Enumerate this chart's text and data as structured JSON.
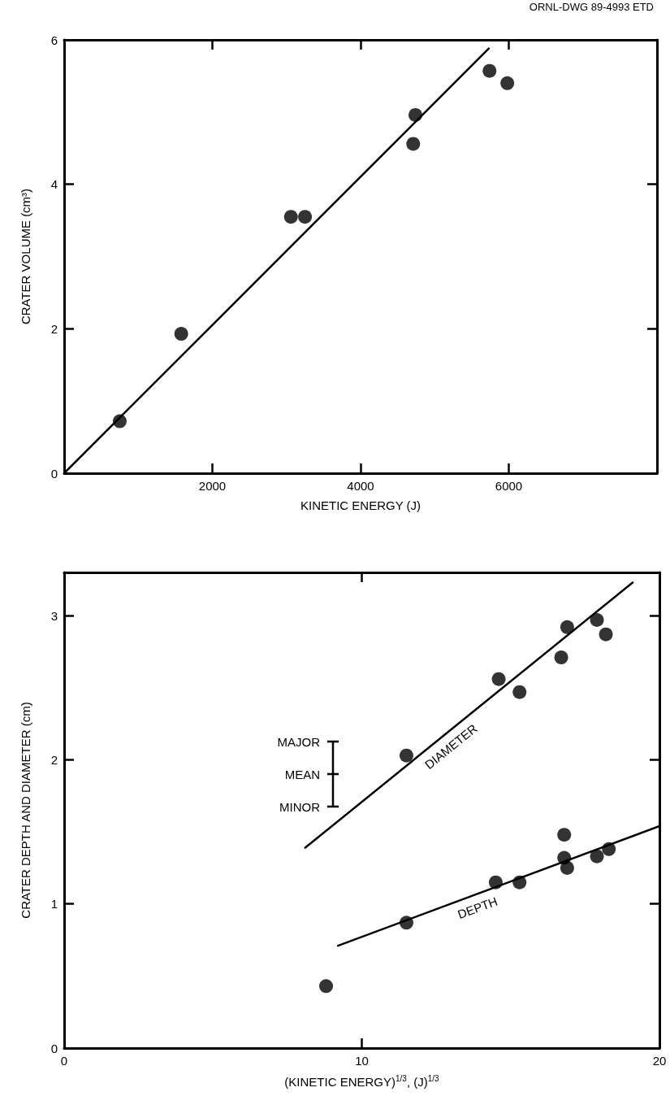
{
  "chart_data": [
    {
      "type": "scatter",
      "xlabel": "KINETIC ENERGY (J)",
      "ylabel": "CRATER VOLUME (cm³)",
      "xlim": [
        0,
        8000
      ],
      "xticks": [
        2000,
        4000,
        6000
      ],
      "ylim": [
        0,
        6
      ],
      "yticks": [
        0,
        2,
        4,
        6
      ],
      "grid": false,
      "legend": false,
      "annotations": [
        "ORNL-DWG 89-4993 ETD"
      ],
      "series": [
        {
          "color": "#000000",
          "marker": "circle",
          "x": [
            750,
            1580,
            3060,
            3250,
            4710,
            4740,
            5740,
            5980
          ],
          "values": [
            0.72,
            1.93,
            3.55,
            3.55,
            4.56,
            4.96,
            5.57,
            5.4
          ]
        },
        {
          "type": "line",
          "marker": "none",
          "color": "#000000",
          "line_style": "solid",
          "x": [
            0,
            5730
          ],
          "values": [
            0,
            5.88
          ]
        }
      ]
    },
    {
      "type": "scatter",
      "xlabel": "(KINETIC ENERGY)$^{1/3}$, (J)$^{1/3}$",
      "ylabel": "CRATER DEPTH AND DIAMETER (cm)",
      "xlim": [
        0,
        20
      ],
      "xticks": [
        0,
        10,
        20
      ],
      "ylim": [
        0,
        3.3
      ],
      "yticks": [
        0,
        1,
        2,
        3
      ],
      "grid": false,
      "legend": false,
      "annotations": [
        "MAJOR",
        "MEAN",
        "MINOR"
      ],
      "series": [
        {
          "color": "#000000",
          "marker": "circle",
          "x": [
            11.5,
            14.6,
            15.3,
            16.7,
            16.9,
            17.9,
            18.2
          ],
          "values": [
            2.03,
            2.56,
            2.47,
            2.71,
            2.92,
            2.97,
            2.87
          ]
        },
        {
          "color": "#000000",
          "marker": "circle",
          "x": [
            8.8,
            11.5,
            14.5,
            15.3,
            16.8,
            16.8,
            16.9,
            17.9,
            18.3
          ],
          "values": [
            0.43,
            0.87,
            1.15,
            1.15,
            1.48,
            1.32,
            1.25,
            1.33,
            1.38
          ]
        },
        {
          "type": "line",
          "marker": "none",
          "name": "DIAMETER",
          "color": "#000000",
          "line_style": "solid",
          "x": [
            8.1,
            19.1
          ],
          "values": [
            1.39,
            3.23
          ]
        },
        {
          "type": "line",
          "marker": "none",
          "name": "DEPTH",
          "color": "#000000",
          "line_style": "solid",
          "x": [
            9.2,
            20
          ],
          "values": [
            0.71,
            1.54
          ]
        }
      ]
    }
  ]
}
